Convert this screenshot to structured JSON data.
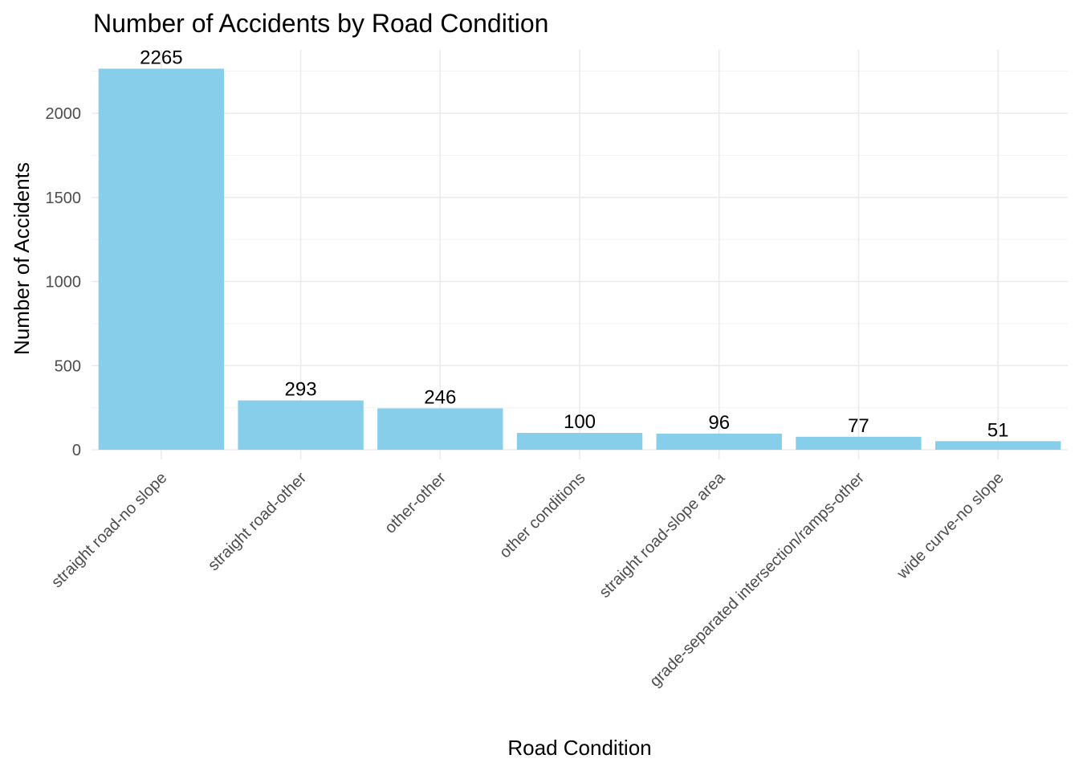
{
  "chart_data": {
    "type": "bar",
    "title": "Number of Accidents by Road Condition",
    "xlabel": "Road Condition",
    "ylabel": "Number of Accidents",
    "categories": [
      "straight road-no slope",
      "straight road-other",
      "other-other",
      "other conditions",
      "straight road-slope area",
      "grade-separated intersection/ramps-other",
      "wide curve-no slope"
    ],
    "values": [
      2265,
      293,
      246,
      100,
      96,
      77,
      51
    ],
    "yticks": [
      0,
      500,
      1000,
      1500,
      2000
    ],
    "ylim": [
      0,
      2400
    ],
    "bar_color": "#87CEEB",
    "grid": true,
    "legend": "none"
  }
}
